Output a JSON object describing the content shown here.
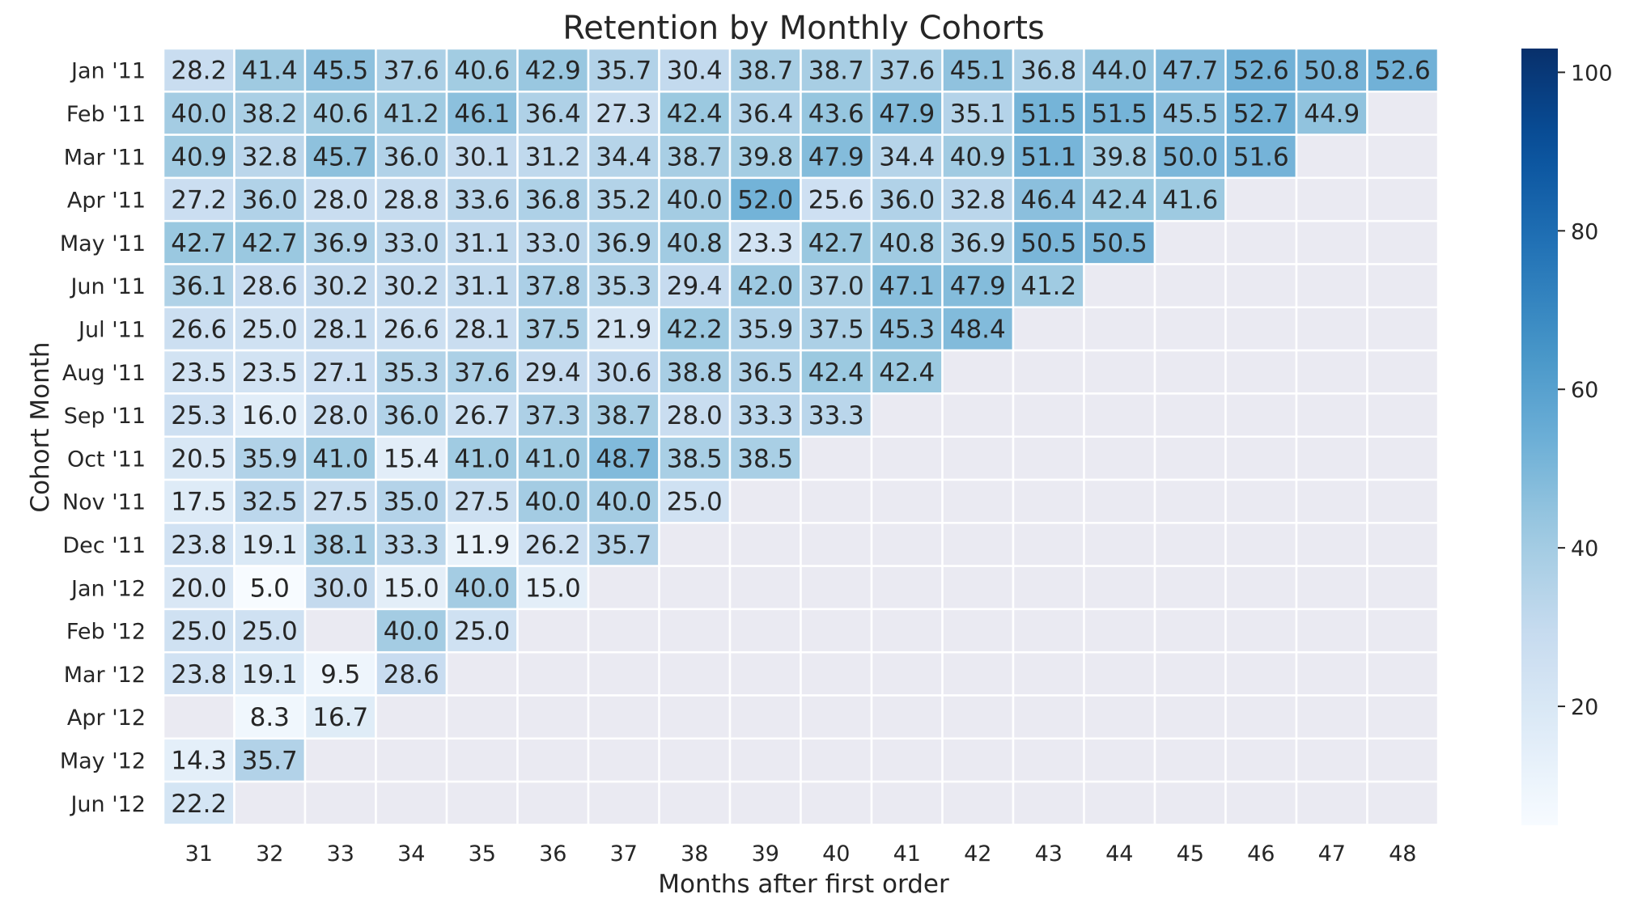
{
  "chart_data": {
    "type": "heatmap",
    "title": "Retention by Monthly Cohorts",
    "xlabel": "Months after first order",
    "ylabel": "Cohort Month",
    "x": [
      "31",
      "32",
      "33",
      "34",
      "35",
      "36",
      "37",
      "38",
      "39",
      "40",
      "41",
      "42",
      "43",
      "44",
      "45",
      "46",
      "47",
      "48"
    ],
    "y": [
      "Jan '11",
      "Feb '11",
      "Mar '11",
      "Apr '11",
      "May '11",
      "Jun '11",
      "Jul '11",
      "Aug '11",
      "Sep '11",
      "Oct '11",
      "Nov '11",
      "Dec '11",
      "Jan '12",
      "Feb '12",
      "Mar '12",
      "Apr '12",
      "May '12",
      "Jun '12"
    ],
    "values": [
      [
        28.2,
        41.4,
        45.5,
        37.6,
        40.6,
        42.9,
        35.7,
        30.4,
        38.7,
        38.7,
        37.6,
        45.1,
        36.8,
        44.0,
        47.7,
        52.6,
        50.8,
        52.6
      ],
      [
        40.0,
        38.2,
        40.6,
        41.2,
        46.1,
        36.4,
        27.3,
        42.4,
        36.4,
        43.6,
        47.9,
        35.1,
        51.5,
        51.5,
        45.5,
        52.7,
        44.9,
        null
      ],
      [
        40.9,
        32.8,
        45.7,
        36.0,
        30.1,
        31.2,
        34.4,
        38.7,
        39.8,
        47.9,
        34.4,
        40.9,
        51.1,
        39.8,
        50.0,
        51.6,
        null,
        null
      ],
      [
        27.2,
        36.0,
        28.0,
        28.8,
        33.6,
        36.8,
        35.2,
        40.0,
        52.0,
        25.6,
        36.0,
        32.8,
        46.4,
        42.4,
        41.6,
        null,
        null,
        null
      ],
      [
        42.7,
        42.7,
        36.9,
        33.0,
        31.1,
        33.0,
        36.9,
        40.8,
        23.3,
        42.7,
        40.8,
        36.9,
        50.5,
        50.5,
        null,
        null,
        null,
        null
      ],
      [
        36.1,
        28.6,
        30.2,
        30.2,
        31.1,
        37.8,
        35.3,
        29.4,
        42.0,
        37.0,
        47.1,
        47.9,
        41.2,
        null,
        null,
        null,
        null,
        null
      ],
      [
        26.6,
        25.0,
        28.1,
        26.6,
        28.1,
        37.5,
        21.9,
        42.2,
        35.9,
        37.5,
        45.3,
        48.4,
        null,
        null,
        null,
        null,
        null,
        null
      ],
      [
        23.5,
        23.5,
        27.1,
        35.3,
        37.6,
        29.4,
        30.6,
        38.8,
        36.5,
        42.4,
        42.4,
        null,
        null,
        null,
        null,
        null,
        null,
        null
      ],
      [
        25.3,
        16.0,
        28.0,
        36.0,
        26.7,
        37.3,
        38.7,
        28.0,
        33.3,
        33.3,
        null,
        null,
        null,
        null,
        null,
        null,
        null,
        null
      ],
      [
        20.5,
        35.9,
        41.0,
        15.4,
        41.0,
        41.0,
        48.7,
        38.5,
        38.5,
        null,
        null,
        null,
        null,
        null,
        null,
        null,
        null,
        null
      ],
      [
        17.5,
        32.5,
        27.5,
        35.0,
        27.5,
        40.0,
        40.0,
        25.0,
        null,
        null,
        null,
        null,
        null,
        null,
        null,
        null,
        null,
        null
      ],
      [
        23.8,
        19.1,
        38.1,
        33.3,
        11.9,
        26.2,
        35.7,
        null,
        null,
        null,
        null,
        null,
        null,
        null,
        null,
        null,
        null,
        null
      ],
      [
        20.0,
        5.0,
        30.0,
        15.0,
        40.0,
        15.0,
        null,
        null,
        null,
        null,
        null,
        null,
        null,
        null,
        null,
        null,
        null,
        null
      ],
      [
        25.0,
        25.0,
        null,
        40.0,
        25.0,
        null,
        null,
        null,
        null,
        null,
        null,
        null,
        null,
        null,
        null,
        null,
        null,
        null
      ],
      [
        23.8,
        19.1,
        9.5,
        28.6,
        null,
        null,
        null,
        null,
        null,
        null,
        null,
        null,
        null,
        null,
        null,
        null,
        null,
        null
      ],
      [
        null,
        8.3,
        16.7,
        null,
        null,
        null,
        null,
        null,
        null,
        null,
        null,
        null,
        null,
        null,
        null,
        null,
        null,
        null
      ],
      [
        14.3,
        35.7,
        null,
        null,
        null,
        null,
        null,
        null,
        null,
        null,
        null,
        null,
        null,
        null,
        null,
        null,
        null,
        null
      ],
      [
        22.2,
        null,
        null,
        null,
        null,
        null,
        null,
        null,
        null,
        null,
        null,
        null,
        null,
        null,
        null,
        null,
        null,
        null
      ]
    ],
    "value_format": "0.1f",
    "colormap": "Blues",
    "vmin": 5.0,
    "vmax": 103.0,
    "colorbar_ticks": [
      20,
      40,
      60,
      80,
      100
    ],
    "missing_color": "#eaeaf2",
    "grid": false,
    "legend": "colorbar-right"
  }
}
